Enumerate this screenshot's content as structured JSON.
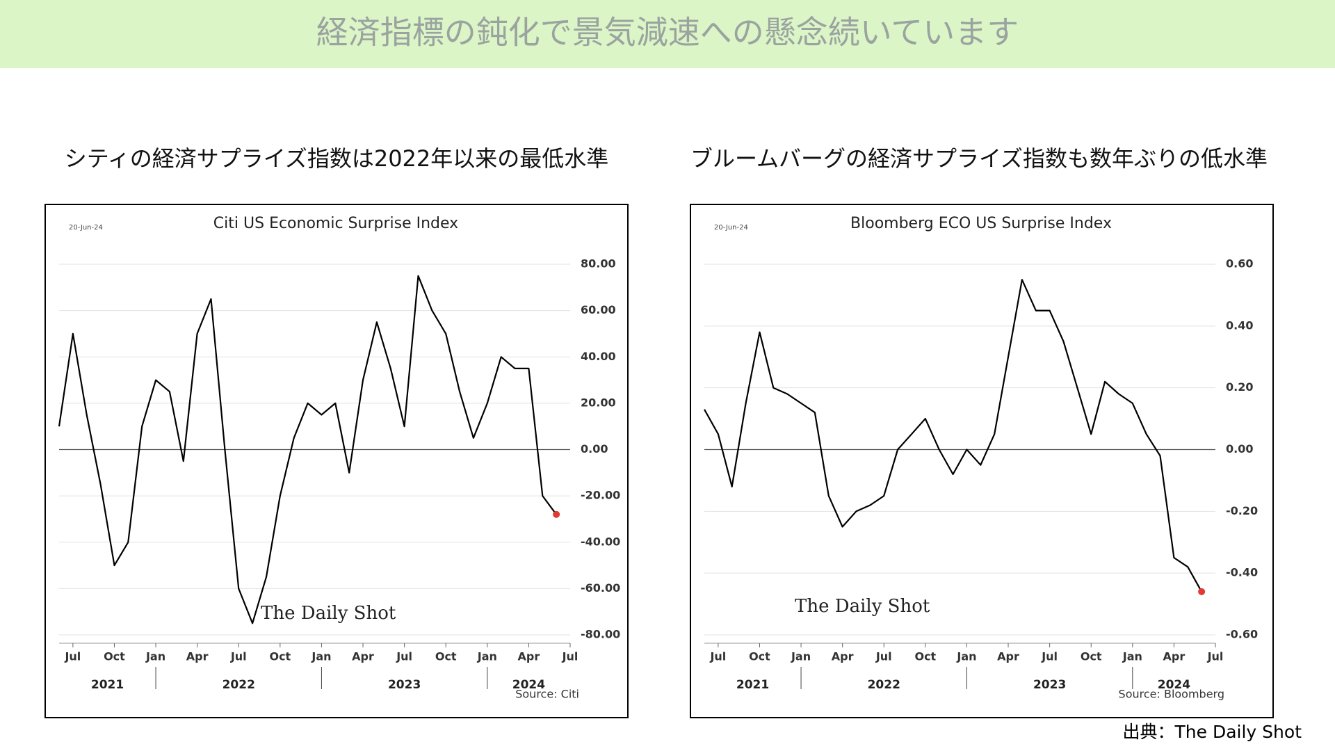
{
  "title": "経済指標の鈍化で景気減速への懸念続いています",
  "credit": "出典：The Daily Shot",
  "chart_data": [
    {
      "type": "line",
      "heading": "シティの経済サプライズ指数は2022年以来の最低水準",
      "title": "Citi US Economic Surprise Index",
      "date_label": "20-Jun-24",
      "source": "Source: Citi",
      "watermark": "The Daily Shot",
      "x": [
        "2021-06",
        "2021-07",
        "2021-08",
        "2021-09",
        "2021-10",
        "2021-11",
        "2021-12",
        "2022-01",
        "2022-02",
        "2022-03",
        "2022-04",
        "2022-05",
        "2022-06",
        "2022-07",
        "2022-08",
        "2022-09",
        "2022-10",
        "2022-11",
        "2022-12",
        "2023-01",
        "2023-02",
        "2023-03",
        "2023-04",
        "2023-05",
        "2023-06",
        "2023-07",
        "2023-08",
        "2023-09",
        "2023-10",
        "2023-11",
        "2023-12",
        "2024-01",
        "2024-02",
        "2024-03",
        "2024-04",
        "2024-05",
        "2024-06"
      ],
      "series": [
        {
          "name": "Citi US Economic Surprise Index",
          "color": "#000000",
          "values": [
            10,
            50,
            15,
            -15,
            -50,
            -40,
            10,
            30,
            25,
            -5,
            50,
            65,
            0,
            -60,
            -75,
            -55,
            -20,
            5,
            20,
            15,
            20,
            -10,
            30,
            55,
            35,
            10,
            75,
            60,
            50,
            25,
            5,
            20,
            40,
            35,
            35,
            -20,
            -28
          ]
        }
      ],
      "highlight_last": true,
      "highlight_color": "#e03a32",
      "xlim": [
        "2021-06",
        "2024-07"
      ],
      "xticks": [
        {
          "value": "2021-07",
          "label": "Jul"
        },
        {
          "value": "2021-10",
          "label": "Oct"
        },
        {
          "value": "2022-01",
          "label": "Jan"
        },
        {
          "value": "2022-04",
          "label": "Apr"
        },
        {
          "value": "2022-07",
          "label": "Jul"
        },
        {
          "value": "2022-10",
          "label": "Oct"
        },
        {
          "value": "2023-01",
          "label": "Jan"
        },
        {
          "value": "2023-04",
          "label": "Apr"
        },
        {
          "value": "2023-07",
          "label": "Jul"
        },
        {
          "value": "2023-10",
          "label": "Oct"
        },
        {
          "value": "2024-01",
          "label": "Jan"
        },
        {
          "value": "2024-04",
          "label": "Apr"
        },
        {
          "value": "2024-07",
          "label": "Jul"
        }
      ],
      "xgroups": [
        "2021",
        "2022",
        "2023",
        "2024"
      ],
      "ylim": [
        -80,
        80
      ],
      "yticks": [
        {
          "value": -80,
          "label": "-80.00"
        },
        {
          "value": -60,
          "label": "-60.00"
        },
        {
          "value": -40,
          "label": "-40.00"
        },
        {
          "value": -20,
          "label": "-20.00"
        },
        {
          "value": 0,
          "label": "0.00"
        },
        {
          "value": 20,
          "label": "20.00"
        },
        {
          "value": 40,
          "label": "40.00"
        },
        {
          "value": 60,
          "label": "60.00"
        },
        {
          "value": 80,
          "label": "80.00"
        }
      ],
      "grid": true
    },
    {
      "type": "line",
      "heading": "ブルームバーグの経済サプライズ指数も数年ぶりの低水準",
      "title": "Bloomberg ECO US Surprise Index",
      "date_label": "20-Jun-24",
      "source": "Source: Bloomberg",
      "watermark": "The Daily Shot",
      "x": [
        "2021-06",
        "2021-07",
        "2021-08",
        "2021-09",
        "2021-10",
        "2021-11",
        "2021-12",
        "2022-01",
        "2022-02",
        "2022-03",
        "2022-04",
        "2022-05",
        "2022-06",
        "2022-07",
        "2022-08",
        "2022-09",
        "2022-10",
        "2022-11",
        "2022-12",
        "2023-01",
        "2023-02",
        "2023-03",
        "2023-04",
        "2023-05",
        "2023-06",
        "2023-07",
        "2023-08",
        "2023-09",
        "2023-10",
        "2023-11",
        "2023-12",
        "2024-01",
        "2024-02",
        "2024-03",
        "2024-04",
        "2024-05",
        "2024-06"
      ],
      "series": [
        {
          "name": "Bloomberg ECO US Surprise Index",
          "color": "#000000",
          "values": [
            0.13,
            0.05,
            -0.12,
            0.15,
            0.38,
            0.2,
            0.18,
            0.15,
            0.12,
            -0.15,
            -0.25,
            -0.2,
            -0.18,
            -0.15,
            0.0,
            0.05,
            0.1,
            0.0,
            -0.08,
            0.0,
            -0.05,
            0.05,
            0.3,
            0.55,
            0.45,
            0.45,
            0.35,
            0.2,
            0.05,
            0.22,
            0.18,
            0.15,
            0.05,
            -0.02,
            -0.35,
            -0.38,
            -0.46
          ]
        }
      ],
      "highlight_last": true,
      "highlight_color": "#e03a32",
      "xlim": [
        "2021-06",
        "2024-07"
      ],
      "xticks": [
        {
          "value": "2021-07",
          "label": "Jul"
        },
        {
          "value": "2021-10",
          "label": "Oct"
        },
        {
          "value": "2022-01",
          "label": "Jan"
        },
        {
          "value": "2022-04",
          "label": "Apr"
        },
        {
          "value": "2022-07",
          "label": "Jul"
        },
        {
          "value": "2022-10",
          "label": "Oct"
        },
        {
          "value": "2023-01",
          "label": "Jan"
        },
        {
          "value": "2023-04",
          "label": "Apr"
        },
        {
          "value": "2023-07",
          "label": "Jul"
        },
        {
          "value": "2023-10",
          "label": "Oct"
        },
        {
          "value": "2024-01",
          "label": "Jan"
        },
        {
          "value": "2024-04",
          "label": "Apr"
        },
        {
          "value": "2024-07",
          "label": "Jul"
        }
      ],
      "xgroups": [
        "2021",
        "2022",
        "2023",
        "2024"
      ],
      "ylim": [
        -0.6,
        0.6
      ],
      "yticks": [
        {
          "value": -0.6,
          "label": "-0.60"
        },
        {
          "value": -0.4,
          "label": "-0.40"
        },
        {
          "value": -0.2,
          "label": "-0.20"
        },
        {
          "value": 0,
          "label": "0.00"
        },
        {
          "value": 0.2,
          "label": "0.20"
        },
        {
          "value": 0.4,
          "label": "0.40"
        },
        {
          "value": 0.6,
          "label": "0.60"
        }
      ],
      "grid": true
    }
  ]
}
